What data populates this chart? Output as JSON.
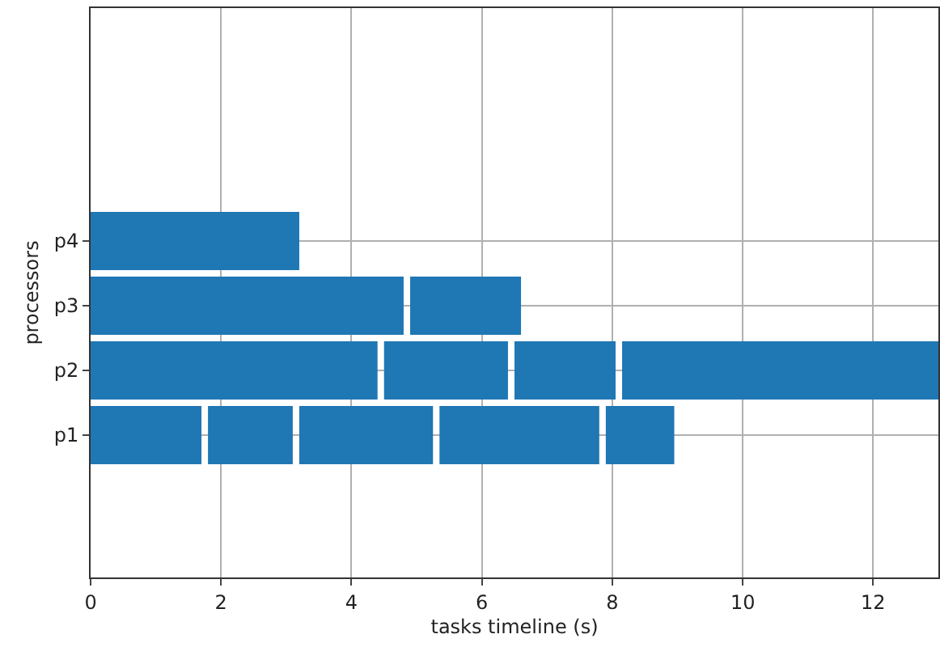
{
  "chart_data": {
    "type": "bar",
    "orientation": "horizontal",
    "xlabel": "tasks timeline (s)",
    "ylabel": "processors",
    "categories": [
      "p4",
      "p3",
      "p2",
      "p1"
    ],
    "series": [
      {
        "color": "#1f77b4",
        "base": [
          0,
          0,
          0,
          0
        ],
        "values": [
          3.2,
          4.8,
          4.4,
          1.7
        ]
      },
      {
        "color": "#1f77b4",
        "base": [
          null,
          4.9,
          4.5,
          1.8
        ],
        "values": [
          null,
          1.7,
          1.9,
          1.3
        ]
      },
      {
        "color": "#1f77b4",
        "base": [
          null,
          null,
          6.5,
          3.2
        ],
        "values": [
          null,
          null,
          1.55,
          2.05
        ]
      },
      {
        "color": "#1f77b4",
        "base": [
          null,
          null,
          8.15,
          5.35
        ],
        "values": [
          null,
          null,
          4.85,
          2.45
        ]
      },
      {
        "color": "#1f77b4",
        "base": [
          null,
          null,
          null,
          7.9
        ],
        "values": [
          null,
          null,
          null,
          1.05
        ]
      }
    ],
    "xlim": [
      0,
      13
    ],
    "xticks": [
      0,
      2,
      4,
      6,
      8,
      10,
      12
    ],
    "grid": true
  }
}
